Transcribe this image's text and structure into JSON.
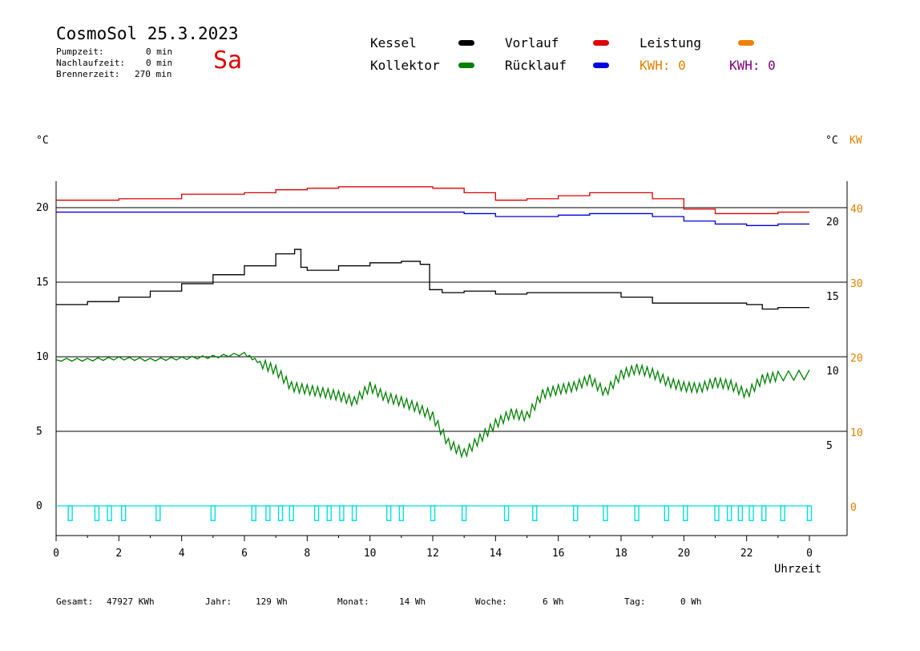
{
  "header": {
    "title": "CosmoSol 25.3.2023",
    "day": "Sa",
    "stats": [
      {
        "label": "Pumpzeit:",
        "value": "0 min"
      },
      {
        "label": "Nachlaufzeit:",
        "value": "0 min"
      },
      {
        "label": "Brennerzeit:",
        "value": "270 min"
      }
    ]
  },
  "legend": {
    "kessel": {
      "label": "Kessel",
      "color": "#000000"
    },
    "kollektor": {
      "label": "Kollektor",
      "color": "#008000"
    },
    "vorlauf": {
      "label": "Vorlauf",
      "color": "#e00000"
    },
    "ruecklauf": {
      "label": "Rücklauf",
      "color": "#0000e0"
    },
    "leistung": {
      "label": "Leistung",
      "color": "#f08000"
    },
    "kwh1": {
      "label": "KWH: 0",
      "color": "#e08000"
    },
    "kwh2": {
      "label": "KWH: 0",
      "color": "#800080"
    }
  },
  "axes": {
    "left_unit": "°C",
    "right_unit_c": "°C",
    "right_unit_kw": "KW",
    "x_title": "Uhrzeit"
  },
  "footer": {
    "items": [
      {
        "label": "Gesamt:",
        "value": "47927 KWh"
      },
      {
        "label": "Jahr:",
        "value": "129 Wh"
      },
      {
        "label": "Monat:",
        "value": "14 Wh"
      },
      {
        "label": "Woche:",
        "value": "6 Wh"
      },
      {
        "label": "Tag:",
        "value": "0 Wh"
      }
    ]
  },
  "chart_data": {
    "type": "line",
    "xlabel": "Uhrzeit",
    "ylabel": "°C",
    "xlim": [
      0,
      24
    ],
    "ylim": [
      -2,
      22
    ],
    "x_ticks": [
      "0",
      "2",
      "4",
      "6",
      "8",
      "10",
      "12",
      "14",
      "16",
      "18",
      "20",
      "22",
      "0"
    ],
    "y_ticks_left": [
      "0",
      "5",
      "10",
      "15",
      "20"
    ],
    "y_ticks_right_c": [
      "5",
      "10",
      "15",
      "20"
    ],
    "y_ticks_right_kw": [
      "0",
      "10",
      "20",
      "30",
      "40"
    ],
    "grid": true,
    "series": [
      {
        "name": "Vorlauf",
        "color": "#e00000",
        "x": [
          0,
          1,
          2,
          3,
          4,
          5,
          6,
          7,
          8,
          9,
          10,
          11,
          12,
          13,
          14,
          15,
          16,
          17,
          18,
          19,
          20,
          21,
          22,
          23,
          24
        ],
        "y": [
          20.5,
          20.5,
          20.6,
          20.6,
          20.9,
          20.9,
          21.0,
          21.2,
          21.3,
          21.4,
          21.4,
          21.4,
          21.3,
          21.0,
          20.5,
          20.6,
          20.8,
          21.0,
          21.0,
          20.6,
          19.9,
          19.6,
          19.6,
          19.7,
          19.7
        ]
      },
      {
        "name": "Rücklauf",
        "color": "#0000e0",
        "x": [
          0,
          2,
          4,
          6,
          8,
          10,
          12,
          13,
          14,
          15,
          16,
          17,
          18,
          19,
          20,
          21,
          22,
          23,
          24
        ],
        "y": [
          19.7,
          19.7,
          19.7,
          19.7,
          19.7,
          19.7,
          19.7,
          19.6,
          19.4,
          19.4,
          19.5,
          19.6,
          19.6,
          19.4,
          19.1,
          18.9,
          18.8,
          18.9,
          18.9
        ]
      },
      {
        "name": "Kessel",
        "color": "#000000",
        "x": [
          0,
          1,
          2,
          3,
          4,
          5,
          6,
          7,
          7.6,
          7.8,
          8.0,
          8.5,
          9,
          10,
          11,
          11.6,
          11.9,
          12.3,
          13,
          14,
          15,
          16,
          17,
          17.6,
          18,
          19,
          20,
          21,
          22,
          22.5,
          23,
          24
        ],
        "y": [
          13.5,
          13.7,
          14.0,
          14.4,
          14.9,
          15.5,
          16.1,
          16.9,
          17.2,
          16.0,
          15.8,
          15.8,
          16.1,
          16.3,
          16.4,
          16.2,
          14.5,
          14.3,
          14.4,
          14.2,
          14.3,
          14.3,
          14.3,
          14.3,
          14.0,
          13.6,
          13.6,
          13.6,
          13.5,
          13.2,
          13.3,
          13.3
        ]
      },
      {
        "name": "Kollektor",
        "color": "#008000",
        "x": [
          0,
          1,
          2,
          3,
          4,
          5,
          6,
          6.5,
          7,
          7.5,
          8,
          8.5,
          9,
          9.5,
          10,
          10.5,
          11,
          11.5,
          12,
          12.5,
          13,
          13.5,
          14,
          14.5,
          15,
          15.5,
          16,
          16.5,
          17,
          17.5,
          18,
          18.5,
          19,
          19.5,
          20,
          20.5,
          21,
          21.5,
          22,
          22.5,
          23,
          24
        ],
        "y": [
          9.8,
          9.8,
          9.9,
          9.8,
          9.9,
          10.0,
          10.2,
          9.6,
          9.1,
          8.0,
          7.8,
          7.6,
          7.4,
          7.0,
          8.0,
          7.3,
          7.0,
          6.6,
          6.0,
          4.2,
          3.5,
          4.5,
          5.5,
          6.2,
          6.0,
          7.5,
          7.8,
          8.0,
          8.5,
          7.6,
          8.8,
          9.2,
          8.9,
          8.3,
          8.0,
          7.9,
          8.3,
          8.1,
          7.5,
          8.5,
          8.7,
          8.8
        ]
      }
    ],
    "pump_pulses": {
      "name": "Leistung",
      "color": "#00e0e0",
      "baseline": 0,
      "times": [
        0.45,
        1.3,
        1.7,
        2.15,
        3.25,
        5.0,
        6.3,
        6.75,
        7.15,
        7.5,
        8.3,
        8.7,
        9.1,
        9.5,
        10.6,
        11.0,
        12.0,
        13.0,
        14.35,
        15.25,
        16.55,
        17.5,
        18.5,
        19.45,
        20.05,
        21.05,
        21.45,
        21.8,
        22.15,
        22.55,
        23.15,
        24.0
      ],
      "depth": -0.5
    }
  }
}
